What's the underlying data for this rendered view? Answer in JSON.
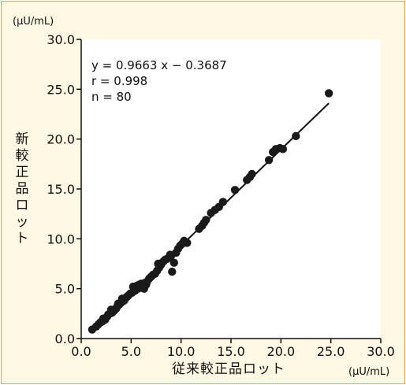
{
  "chart_data": {
    "type": "scatter",
    "title": "",
    "y_unit": "(μU/mL)",
    "x_unit": "(μU/mL)",
    "xlabel": "従来較正品ロット",
    "ylabel": "新較正品ロット",
    "xlim": [
      0,
      30
    ],
    "ylim": [
      0,
      30
    ],
    "x_ticks": [
      "0.0",
      "5.0",
      "10.0",
      "15.0",
      "20.0",
      "25.0",
      "30.0"
    ],
    "y_ticks": [
      "0.0",
      "5.0",
      "10.0",
      "15.0",
      "20.0",
      "25.0",
      "30.0"
    ],
    "grid": false,
    "annotations": [
      "y = 0.9663 x − 0.3687",
      "r = 0.998",
      "n = 80"
    ],
    "regression": {
      "slope": 0.9663,
      "intercept": -0.3687,
      "x_range": [
        1.1,
        24.8
      ]
    },
    "points": [
      [
        1.1,
        0.9
      ],
      [
        1.5,
        1.2
      ],
      [
        1.7,
        1.4
      ],
      [
        1.9,
        1.6
      ],
      [
        2.1,
        1.7
      ],
      [
        2.2,
        2.0
      ],
      [
        2.4,
        1.9
      ],
      [
        2.6,
        2.2
      ],
      [
        2.7,
        2.4
      ],
      [
        2.9,
        2.5
      ],
      [
        3.1,
        2.6
      ],
      [
        3.3,
        2.8
      ],
      [
        3.5,
        3.0
      ],
      [
        3.6,
        3.2
      ],
      [
        3.8,
        3.4
      ],
      [
        4.0,
        3.6
      ],
      [
        4.1,
        4.0
      ],
      [
        4.3,
        3.8
      ],
      [
        4.5,
        4.1
      ],
      [
        4.7,
        4.3
      ],
      [
        4.9,
        4.5
      ],
      [
        5.1,
        4.6
      ],
      [
        5.2,
        5.2
      ],
      [
        5.4,
        4.8
      ],
      [
        5.5,
        5.1
      ],
      [
        5.6,
        5.3
      ],
      [
        5.7,
        5.0
      ],
      [
        5.8,
        5.4
      ],
      [
        5.9,
        5.2
      ],
      [
        6.0,
        5.5
      ],
      [
        6.1,
        5.1
      ],
      [
        6.2,
        5.3
      ],
      [
        6.3,
        5.0
      ],
      [
        6.4,
        5.6
      ],
      [
        6.5,
        5.4
      ],
      [
        6.6,
        5.7
      ],
      [
        6.8,
        6.0
      ],
      [
        7.0,
        6.2
      ],
      [
        7.2,
        6.4
      ],
      [
        7.4,
        6.5
      ],
      [
        7.6,
        6.8
      ],
      [
        7.8,
        7.1
      ],
      [
        8.0,
        7.4
      ],
      [
        8.2,
        7.7
      ],
      [
        8.4,
        7.9
      ],
      [
        8.6,
        8.0
      ],
      [
        8.8,
        8.1
      ],
      [
        9.0,
        8.3
      ],
      [
        9.1,
        6.7
      ],
      [
        9.3,
        7.6
      ],
      [
        9.5,
        8.6
      ],
      [
        9.7,
        9.0
      ],
      [
        9.9,
        9.3
      ],
      [
        10.1,
        9.5
      ],
      [
        10.3,
        9.8
      ],
      [
        10.6,
        9.6
      ],
      [
        12.1,
        11.3
      ],
      [
        12.3,
        11.6
      ],
      [
        12.5,
        11.9
      ],
      [
        13.0,
        12.6
      ],
      [
        13.4,
        12.9
      ],
      [
        13.8,
        13.2
      ],
      [
        14.2,
        13.7
      ],
      [
        15.4,
        14.9
      ],
      [
        16.6,
        15.9
      ],
      [
        16.9,
        16.2
      ],
      [
        17.1,
        16.5
      ],
      [
        18.8,
        17.9
      ],
      [
        19.2,
        18.7
      ],
      [
        19.5,
        19.0
      ],
      [
        19.9,
        19.1
      ],
      [
        20.2,
        19.0
      ],
      [
        21.5,
        20.3
      ],
      [
        24.8,
        24.6
      ],
      [
        3.0,
        2.9
      ],
      [
        3.7,
        3.5
      ],
      [
        4.6,
        4.2
      ],
      [
        7.7,
        7.5
      ],
      [
        8.9,
        8.4
      ],
      [
        11.8,
        11.0
      ]
    ]
  }
}
